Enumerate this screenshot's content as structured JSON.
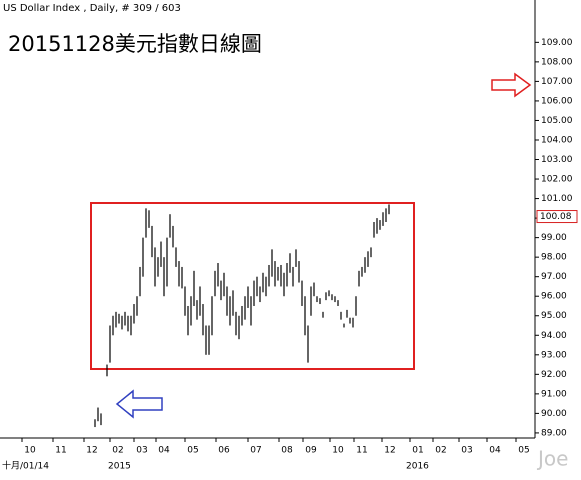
{
  "chart_data": {
    "type": "hilo",
    "header": "US Dollar Index , Daily, # 309 / 603",
    "title": "20151128美元指數日線圖",
    "date_label": "十月/01/14",
    "years": [
      "2015",
      "2016"
    ],
    "watermark": "Joe",
    "color": "#000000",
    "categories": [
      "10",
      "11",
      "12",
      "02",
      "03",
      "04",
      "05",
      "06",
      "07",
      "08",
      "09",
      "10",
      "11",
      "12",
      "01",
      "02",
      "03",
      "04",
      "05"
    ],
    "low": [
      89.3,
      89.6,
      89.4,
      null,
      91.9,
      92.6,
      94.0,
      94.4,
      94.6,
      94.3,
      94.5,
      94.2,
      94.0,
      94.6,
      95.0,
      96.0,
      97.0,
      99.0,
      99.5,
      98.0,
      96.5,
      97.0,
      97.5,
      96.0,
      96.5,
      99.0,
      98.5,
      97.5,
      96.5,
      96.4,
      95.0,
      94.0,
      94.5,
      95.5,
      94.8,
      95.0,
      94.0,
      93.0,
      93.0,
      94.0,
      96.0,
      96.5,
      95.8,
      96.0,
      95.0,
      94.5,
      95.0,
      94.0,
      93.8,
      94.5,
      94.8,
      95.4,
      94.5,
      95.5,
      96.0,
      95.7,
      96.2,
      96.0,
      96.5,
      97.0,
      96.5,
      96.8,
      96.5,
      96.0,
      96.5,
      97.2,
      96.5,
      97.5,
      96.7,
      95.5,
      94.0,
      92.6,
      95.0,
      96.0,
      95.7,
      95.6,
      94.9,
      95.8,
      96.0,
      95.8,
      95.7,
      95.5,
      94.8,
      94.4,
      94.9,
      94.6,
      94.4,
      95.0,
      96.5,
      97.0,
      97.2,
      97.5,
      98.0,
      99.0,
      99.2,
      99.4,
      99.6,
      99.8,
      100.2
    ],
    "high": [
      89.7,
      90.3,
      90.0,
      null,
      92.5,
      94.5,
      95.0,
      95.2,
      95.1,
      95.0,
      95.2,
      95.0,
      95.0,
      95.6,
      96.0,
      97.5,
      99.0,
      100.5,
      100.4,
      99.6,
      98.5,
      98.0,
      98.8,
      98.0,
      99.0,
      100.2,
      99.6,
      98.5,
      97.8,
      97.5,
      96.5,
      95.5,
      96.0,
      97.3,
      95.8,
      96.5,
      95.6,
      94.5,
      94.5,
      96.0,
      97.3,
      97.7,
      96.8,
      97.2,
      96.5,
      96.0,
      96.3,
      95.2,
      95.0,
      95.5,
      96.0,
      96.5,
      96.0,
      96.8,
      97.0,
      96.5,
      97.2,
      97.0,
      97.6,
      98.4,
      97.8,
      97.5,
      97.6,
      97.2,
      97.7,
      98.2,
      97.5,
      98.4,
      97.8,
      96.8,
      96.0,
      94.5,
      96.5,
      96.7,
      96.0,
      95.9,
      95.2,
      96.2,
      96.3,
      96.1,
      96.0,
      95.8,
      95.2,
      94.6,
      95.3,
      94.9,
      94.9,
      96.0,
      97.3,
      97.5,
      98.0,
      98.3,
      98.5,
      99.8,
      100.0,
      99.9,
      100.3,
      100.5,
      100.7
    ],
    "last": 100.08,
    "last_color": "#d62020",
    "ylim": [
      88.74,
      110.4
    ],
    "yticks": [
      {
        "value": 89,
        "label": "89.00"
      },
      {
        "value": 90,
        "label": "90.00"
      },
      {
        "value": 91,
        "label": "91.00"
      },
      {
        "value": 92,
        "label": "92.00"
      },
      {
        "value": 93,
        "label": "93.00"
      },
      {
        "value": 94,
        "label": "94.00"
      },
      {
        "value": 95,
        "label": "95.00"
      },
      {
        "value": 96,
        "label": "96.00"
      },
      {
        "value": 97,
        "label": "97.00"
      },
      {
        "value": 98,
        "label": "98.00"
      },
      {
        "value": 99,
        "label": "99.00"
      },
      {
        "value": 100,
        "label": "100.00"
      },
      {
        "value": 101,
        "label": "101.00"
      },
      {
        "value": 102,
        "label": "102.00"
      },
      {
        "value": 103,
        "label": "103.00"
      },
      {
        "value": 104,
        "label": "104.00"
      },
      {
        "value": 105,
        "label": "105.00"
      },
      {
        "value": 106,
        "label": "106.00"
      },
      {
        "value": 107,
        "label": "107.00"
      },
      {
        "value": 108,
        "label": "108.00"
      },
      {
        "value": 109,
        "label": "109.00"
      }
    ]
  }
}
